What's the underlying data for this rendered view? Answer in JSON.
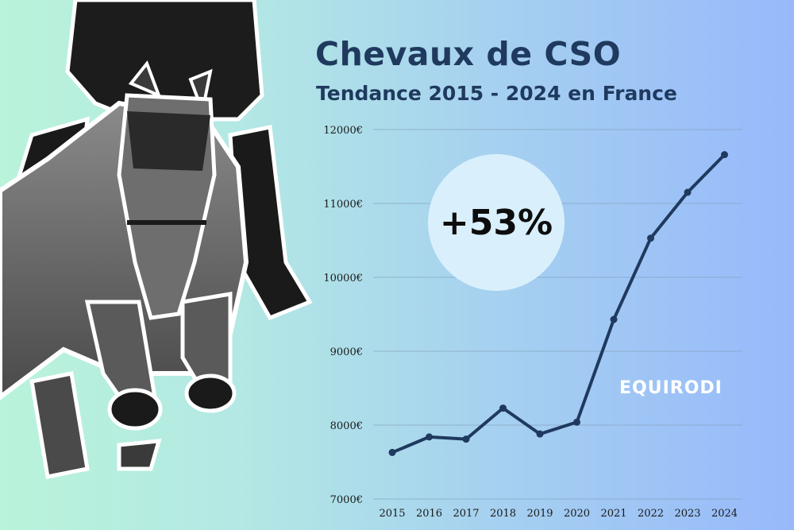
{
  "header": {
    "title": "Chevaux de CSO",
    "subtitle": "Tendance 2015 - 2024 en France"
  },
  "badge": {
    "text": "+53%"
  },
  "brand": {
    "name": "EQUIRODI"
  },
  "colors": {
    "line": "#1f3a5e",
    "title": "#1f3a5e",
    "gridline": "#7f9bb3",
    "badge_bg": "#d9f0fc"
  },
  "chart_data": {
    "type": "line",
    "title": "Chevaux de CSO",
    "subtitle": "Tendance 2015 - 2024 en France",
    "x": [
      "2015",
      "2016",
      "2017",
      "2018",
      "2019",
      "2020",
      "2021",
      "2022",
      "2023",
      "2024"
    ],
    "series": [
      {
        "values": [
          7630,
          7840,
          7810,
          8230,
          7880,
          8040,
          9430,
          10530,
          11150,
          11660
        ]
      }
    ],
    "y_ticks": [
      "12000€",
      "11000€",
      "10000€",
      "9000€",
      "8000€",
      "7000€"
    ],
    "ylim": [
      7000,
      12000
    ],
    "grid": true,
    "xlabel": "",
    "ylabel": ""
  }
}
